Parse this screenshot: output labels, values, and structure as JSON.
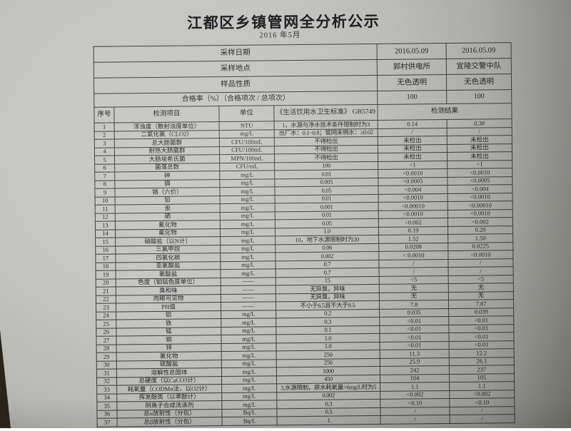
{
  "doc": {
    "title": "江都区乡镇管网全分析公示",
    "subtitle": "2016 年5月"
  },
  "colors": {
    "paper": "#c3c3bf",
    "ink": "#26262a",
    "table_line": "#3e3e40"
  },
  "info_rows": [
    {
      "label": "采样日期",
      "values": [
        "2016.05.09",
        "2016.05.09"
      ]
    },
    {
      "label": "采样地点",
      "values": [
        "郭村供电所",
        "宜陵交警中队"
      ]
    },
    {
      "label": "样品性质",
      "values": [
        "无色透明",
        "无色透明"
      ]
    },
    {
      "label": "合格率（%）（合格项次 / 总项次）",
      "values": [
        "100",
        "100"
      ]
    }
  ],
  "columns": {
    "index": "序号",
    "item": "检测项目",
    "unit": "单位",
    "standard": "《生活饮用水卫生标准》 GB5749",
    "result": "检测结果"
  },
  "rows": [
    {
      "no": "1",
      "item": "浑浊度（散射浊度单位）",
      "unit": "NTU",
      "standard": "1，水源与净水技术条件限制时为3",
      "r1": "0.14",
      "r2": "0.38"
    },
    {
      "no": "2",
      "item": "二氧化氯（CLO2）",
      "unit": "mg/L",
      "standard": "出厂水：0.1~0.8；管网末梢水：≥0.02",
      "r1": "/",
      "r2": "/"
    },
    {
      "no": "3",
      "item": "总大肠菌群",
      "unit": "CFU/100mL",
      "standard": "不得检出",
      "r1": "未检出",
      "r2": "未检出"
    },
    {
      "no": "4",
      "item": "耐热大肠菌群",
      "unit": "CFU/100mL",
      "standard": "不得检出",
      "r1": "未检出",
      "r2": "未检出"
    },
    {
      "no": "5",
      "item": "大肠埃希氏菌",
      "unit": "MPN/100mL",
      "standard": "不得检出",
      "r1": "未检出",
      "r2": "未检出"
    },
    {
      "no": "6",
      "item": "菌落总数",
      "unit": "CFU/mL",
      "standard": "100",
      "r1": "<1",
      "r2": "<1"
    },
    {
      "no": "7",
      "item": "砷",
      "unit": "mg/L",
      "standard": "0.01",
      "r1": "<0.0010",
      "r2": "<0.0010"
    },
    {
      "no": "8",
      "item": "镉",
      "unit": "mg/L",
      "standard": "0.005",
      "r1": "<0.0005",
      "r2": "<0.0005"
    },
    {
      "no": "9",
      "item": "铬（六价）",
      "unit": "mg/L",
      "standard": "0.05",
      "r1": "<0.004",
      "r2": "<0.004"
    },
    {
      "no": "10",
      "item": "铅",
      "unit": "mg/L",
      "standard": "0.01",
      "r1": "<0.0010",
      "r2": "<0.0010"
    },
    {
      "no": "11",
      "item": "汞",
      "unit": "mg/L",
      "standard": "0.001",
      "r1": "<0.00010",
      "r2": "<0.00010"
    },
    {
      "no": "12",
      "item": "硒",
      "unit": "mg/L",
      "standard": "0.01",
      "r1": "<0.0010",
      "r2": "<0.0010"
    },
    {
      "no": "13",
      "item": "氰化物",
      "unit": "mg/L",
      "standard": "0.05",
      "r1": "<0.002",
      "r2": "<0.002"
    },
    {
      "no": "14",
      "item": "氟化物",
      "unit": "mg/L",
      "standard": "1.0",
      "r1": "0.19",
      "r2": "0.20"
    },
    {
      "no": "15",
      "item": "硝酸盐（以N计）",
      "unit": "mg/L",
      "standard": "10，地下水源限制时为20",
      "r1": "1.52",
      "r2": "1.50"
    },
    {
      "no": "16",
      "item": "三氯甲烷",
      "unit": "mg/L",
      "standard": "0.06",
      "r1": "0.0208",
      "r2": "0.0225"
    },
    {
      "no": "17",
      "item": "四氯化碳",
      "unit": "mg/L",
      "standard": "0.002",
      "r1": "< 0.0010",
      "r2": "<0.0010"
    },
    {
      "no": "18",
      "item": "亚氯酸盐",
      "unit": "mg/L",
      "standard": "0.7",
      "r1": "/",
      "r2": "/"
    },
    {
      "no": "19",
      "item": "氯酸盐",
      "unit": "mg/L",
      "standard": "0.7",
      "r1": "/",
      "r2": "/"
    },
    {
      "no": "20",
      "item": "色度（铂钴色度单位）",
      "unit": "——",
      "standard": "15",
      "r1": "<5",
      "r2": "<5"
    },
    {
      "no": "21",
      "item": "臭和味",
      "unit": "——",
      "standard": "无异臭，异味",
      "r1": "无",
      "r2": "无"
    },
    {
      "no": "22",
      "item": "肉眼可见物",
      "unit": "——",
      "standard": "无异臭，异味",
      "r1": "无",
      "r2": "无"
    },
    {
      "no": "23",
      "item": "PH值",
      "unit": "——",
      "standard": "不小于6.5且不大于8.5",
      "r1": "7.8",
      "r2": "7.87"
    },
    {
      "no": "24",
      "item": "铝",
      "unit": "mg/L",
      "standard": "0.2",
      "r1": "0.035",
      "r2": "0.039"
    },
    {
      "no": "25",
      "item": "铁",
      "unit": "mg/L",
      "standard": "0.3",
      "r1": "<0.01",
      "r2": "<0.01"
    },
    {
      "no": "26",
      "item": "锰",
      "unit": "mg/L",
      "standard": "0.1",
      "r1": "<0.01",
      "r2": "<0.01"
    },
    {
      "no": "27",
      "item": "铜",
      "unit": "mg/L",
      "standard": "1.0",
      "r1": "<0.01",
      "r2": "<0.01"
    },
    {
      "no": "28",
      "item": "锌",
      "unit": "mg/L",
      "standard": "1.0",
      "r1": "<0.01",
      "r2": "<0.01"
    },
    {
      "no": "29",
      "item": "氯化物",
      "unit": "mg/L",
      "standard": "250",
      "r1": "11.3",
      "r2": "12.2"
    },
    {
      "no": "30",
      "item": "硫酸盐",
      "unit": "mg/L",
      "standard": "250",
      "r1": "25.9",
      "r2": "26.1"
    },
    {
      "no": "31",
      "item": "溶解性总固体",
      "unit": "mg/L",
      "standard": "1000",
      "r1": "242",
      "r2": "237"
    },
    {
      "no": "32",
      "item": "总硬度（以CaCO3计）",
      "unit": "mg/L",
      "standard": "450",
      "r1": "104",
      "r2": "105"
    },
    {
      "no": "33",
      "item": "耗氧量（CODMn法，以O2计）",
      "unit": "mg/L",
      "standard": "3,水源限制，原水耗氧量>6mg/L时为5",
      "r1": "1.1",
      "r2": "1.1"
    },
    {
      "no": "34",
      "item": "挥发酚类（以苯酚计）",
      "unit": "mg/L",
      "standard": "0.002",
      "r1": "<0.002",
      "r2": "<0.002"
    },
    {
      "no": "35",
      "item": "阴离子合成洗涤剂",
      "unit": "mg/L",
      "standard": "0.3",
      "r1": "<0.10",
      "r2": "<0.10"
    },
    {
      "no": "36",
      "item": "总α放射性（分包）",
      "unit": "Bq/L",
      "standard": "0.5",
      "r1": "/",
      "r2": "/"
    },
    {
      "no": "37",
      "item": "总β放射性（分包）",
      "unit": "Bq/L",
      "standard": "1",
      "r1": "/",
      "r2": "/"
    }
  ]
}
